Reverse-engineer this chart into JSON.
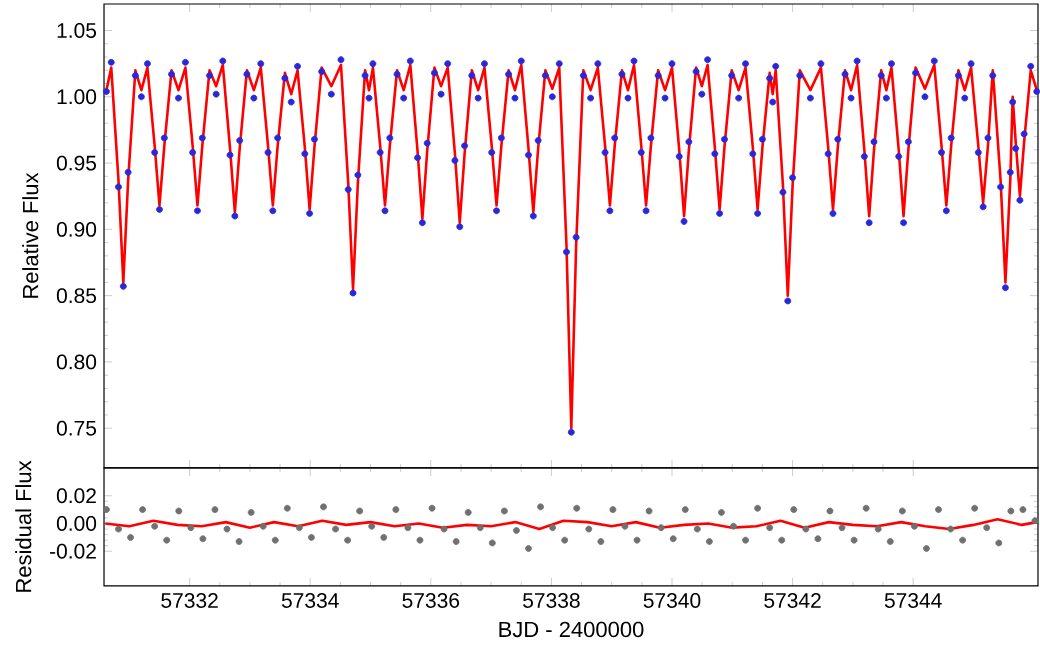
{
  "chart_data": [
    {
      "type": "line",
      "ylabel": "Relative Flux",
      "xlim": [
        57330.58,
        57346.07
      ],
      "ylim": [
        0.72,
        1.07
      ],
      "xticks": [
        57332,
        57334,
        57336,
        57338,
        57340,
        57342,
        57344
      ],
      "yticks": [
        {
          "value": 0.75,
          "label": "0.75"
        },
        {
          "value": 0.8,
          "label": "0.80"
        },
        {
          "value": 0.85,
          "label": "0.85"
        },
        {
          "value": 0.9,
          "label": "0.90"
        },
        {
          "value": 0.95,
          "label": "0.95"
        },
        {
          "value": 1.0,
          "label": "1.00"
        },
        {
          "value": 1.05,
          "label": "1.05"
        }
      ],
      "tick_labels": "y",
      "x": [
        57330.62,
        57330.7,
        57330.82,
        57330.9,
        57330.98,
        57331.1,
        57331.2,
        57331.3,
        57331.42,
        57331.5,
        57331.58,
        57331.7,
        57331.815,
        57331.93,
        57332.05,
        57332.13,
        57332.21,
        57332.33,
        57332.44,
        57332.55,
        57332.67,
        57332.75,
        57332.83,
        57332.95,
        57333.065,
        57333.18,
        57333.3,
        57333.38,
        57333.46,
        57333.58,
        57333.685,
        57333.79,
        57333.91,
        57333.99,
        57334.07,
        57334.19,
        57334.35,
        57334.51,
        57334.63,
        57334.71,
        57334.79,
        57334.91,
        57334.975,
        57335.04,
        57335.16,
        57335.24,
        57335.32,
        57335.44,
        57335.55,
        57335.66,
        57335.78,
        57335.86,
        57335.94,
        57336.06,
        57336.17,
        57336.28,
        57336.4,
        57336.48,
        57336.56,
        57336.68,
        57336.785,
        57336.89,
        57337.01,
        57337.09,
        57337.17,
        57337.29,
        57337.395,
        57337.5,
        57337.62,
        57337.7,
        57337.78,
        57337.9,
        57338.015,
        57338.13,
        57338.25,
        57338.33,
        57338.41,
        57338.53,
        57338.65,
        57338.77,
        57338.89,
        57338.97,
        57339.05,
        57339.17,
        57339.27,
        57339.37,
        57339.49,
        57339.57,
        57339.65,
        57339.77,
        57339.885,
        57340.0,
        57340.12,
        57340.2,
        57340.28,
        57340.4,
        57340.495,
        57340.59,
        57340.71,
        57340.79,
        57340.87,
        57340.99,
        57341.105,
        57341.22,
        57341.34,
        57341.42,
        57341.5,
        57341.62,
        57341.67,
        57341.72,
        57341.84,
        57341.92,
        57342.0,
        57342.12,
        57342.295,
        57342.47,
        57342.59,
        57342.67,
        57342.75,
        57342.87,
        57342.97,
        57343.07,
        57343.19,
        57343.27,
        57343.35,
        57343.47,
        57343.555,
        57343.64,
        57343.76,
        57343.84,
        57343.92,
        57344.04,
        57344.195,
        57344.35,
        57344.47,
        57344.55,
        57344.63,
        57344.75,
        57344.855,
        57344.96,
        57345.08,
        57345.16,
        57345.24,
        57345.32,
        57345.45,
        57345.53,
        57345.61,
        57345.65,
        57345.7,
        57345.77,
        57345.84,
        57345.95,
        57346.05
      ],
      "series": [
        {
          "color": "#ff0000",
          "values": [
            1.005,
            1.022,
            0.937,
            0.86,
            0.937,
            1.02,
            1.005,
            1.022,
            0.963,
            0.918,
            0.963,
            1.02,
            1.005,
            1.022,
            0.963,
            0.918,
            0.963,
            1.02,
            1.008,
            1.024,
            0.961,
            0.913,
            0.961,
            1.02,
            1.005,
            1.022,
            0.963,
            0.918,
            0.963,
            1.018,
            1.002,
            1.02,
            0.962,
            0.915,
            0.962,
            1.022,
            1.008,
            1.024,
            0.935,
            0.855,
            0.935,
            1.02,
            1.005,
            1.022,
            0.963,
            0.918,
            0.963,
            1.02,
            1.005,
            1.024,
            0.959,
            0.908,
            0.959,
            1.022,
            1.008,
            1.022,
            0.957,
            0.905,
            0.957,
            1.02,
            1.005,
            1.022,
            0.963,
            0.918,
            0.963,
            1.02,
            1.005,
            1.024,
            0.961,
            0.913,
            0.961,
            1.02,
            1.006,
            1.022,
            0.888,
            0.75,
            0.888,
            1.02,
            1.005,
            1.022,
            0.963,
            0.918,
            0.963,
            1.02,
            1.005,
            1.024,
            0.963,
            0.918,
            0.963,
            1.02,
            1.005,
            1.022,
            0.96,
            0.91,
            0.96,
            1.022,
            1.008,
            1.024,
            0.962,
            0.915,
            0.962,
            1.02,
            1.005,
            1.022,
            0.962,
            0.915,
            0.962,
            1.018,
            1.002,
            1.02,
            0.933,
            0.85,
            0.933,
            1.02,
            1.005,
            1.022,
            0.962,
            0.915,
            0.962,
            1.02,
            1.005,
            1.024,
            0.96,
            0.91,
            0.96,
            1.02,
            1.005,
            1.022,
            0.96,
            0.91,
            0.96,
            1.022,
            1.006,
            1.024,
            0.963,
            0.918,
            0.963,
            1.02,
            1.005,
            1.022,
            0.963,
            0.92,
            0.963,
            1.02,
            0.937,
            0.86,
            0.937,
            1.0,
            0.966,
            0.925,
            0.966,
            1.02,
            1.005
          ]
        },
        {
          "type": "scatter",
          "color": "#2828d8",
          "marker": "circle",
          "values": [
            1.004,
            1.026,
            0.932,
            0.857,
            0.943,
            1.016,
            1.0,
            1.025,
            0.958,
            0.915,
            0.969,
            1.017,
            0.999,
            1.026,
            0.958,
            0.914,
            0.969,
            1.016,
            1.002,
            1.027,
            0.956,
            0.91,
            0.967,
            1.017,
            0.999,
            1.025,
            0.958,
            0.914,
            0.969,
            1.014,
            0.996,
            1.023,
            0.957,
            0.912,
            0.968,
            1.019,
            1.002,
            1.028,
            0.93,
            0.852,
            0.941,
            1.016,
            0.999,
            1.025,
            0.958,
            0.914,
            0.969,
            1.017,
            0.999,
            1.027,
            0.954,
            0.905,
            0.965,
            1.018,
            1.002,
            1.025,
            0.952,
            0.902,
            0.963,
            1.016,
            0.999,
            1.025,
            0.958,
            0.914,
            0.969,
            1.017,
            0.999,
            1.027,
            0.956,
            0.91,
            0.967,
            1.016,
            1.0,
            1.025,
            0.883,
            0.747,
            0.894,
            1.016,
            0.999,
            1.025,
            0.958,
            0.914,
            0.969,
            1.017,
            0.999,
            1.027,
            0.958,
            0.914,
            0.969,
            1.016,
            0.999,
            1.025,
            0.955,
            0.906,
            0.966,
            1.019,
            1.002,
            1.028,
            0.957,
            0.912,
            0.968,
            1.016,
            0.999,
            1.025,
            0.957,
            0.912,
            0.968,
            1.014,
            0.996,
            1.023,
            0.928,
            0.846,
            0.939,
            1.016,
            0.999,
            1.025,
            0.957,
            0.912,
            0.968,
            1.017,
            0.999,
            1.027,
            0.955,
            0.905,
            0.966,
            1.016,
            0.999,
            1.025,
            0.955,
            0.905,
            0.966,
            1.018,
            1.0,
            1.027,
            0.958,
            0.914,
            0.969,
            1.016,
            0.999,
            1.025,
            0.958,
            0.917,
            0.969,
            1.016,
            0.932,
            0.856,
            0.943,
            0.996,
            0.961,
            0.922,
            0.972,
            1.023,
            1.004
          ]
        }
      ]
    },
    {
      "type": "scatter",
      "ylabel": "Residual Flux",
      "xlabel": "BJD - 2400000",
      "xlim": [
        57330.58,
        57346.07
      ],
      "ylim": [
        -0.045,
        0.04
      ],
      "xticks": [
        57332,
        57334,
        57336,
        57338,
        57340,
        57342,
        57344
      ],
      "yticks": [
        {
          "value": -0.02,
          "label": "-0.02"
        },
        {
          "value": 0,
          "label": "0.00"
        },
        {
          "value": 0.02,
          "label": "0.02"
        }
      ],
      "series": [
        {
          "color": "#707070",
          "marker": "circle",
          "x": [
            57330.62,
            57330.82,
            57331.02,
            57331.22,
            57331.42,
            57331.62,
            57331.82,
            57332.02,
            57332.22,
            57332.42,
            57332.62,
            57332.82,
            57333.02,
            57333.22,
            57333.42,
            57333.62,
            57333.82,
            57334.02,
            57334.22,
            57334.42,
            57334.62,
            57334.82,
            57335.02,
            57335.22,
            57335.42,
            57335.62,
            57335.82,
            57336.02,
            57336.22,
            57336.42,
            57336.62,
            57336.82,
            57337.02,
            57337.22,
            57337.42,
            57337.62,
            57337.82,
            57338.02,
            57338.22,
            57338.42,
            57338.62,
            57338.82,
            57339.02,
            57339.22,
            57339.42,
            57339.62,
            57339.82,
            57340.02,
            57340.22,
            57340.42,
            57340.62,
            57340.82,
            57341.02,
            57341.22,
            57341.42,
            57341.62,
            57341.82,
            57342.02,
            57342.22,
            57342.42,
            57342.62,
            57342.82,
            57343.02,
            57343.22,
            57343.42,
            57343.62,
            57343.82,
            57344.02,
            57344.22,
            57344.42,
            57344.62,
            57344.82,
            57345.02,
            57345.22,
            57345.42,
            57345.62,
            57345.82,
            57346.02
          ],
          "values": [
            0.01,
            -0.004,
            -0.01,
            0.01,
            -0.002,
            -0.012,
            0.009,
            -0.003,
            -0.011,
            0.01,
            -0.004,
            -0.013,
            0.008,
            -0.002,
            -0.012,
            0.011,
            -0.003,
            -0.01,
            0.012,
            -0.004,
            -0.012,
            0.009,
            -0.002,
            -0.01,
            0.01,
            -0.003,
            -0.012,
            0.011,
            -0.004,
            -0.013,
            0.008,
            -0.003,
            -0.014,
            0.009,
            -0.005,
            -0.018,
            0.012,
            -0.003,
            -0.012,
            0.011,
            -0.004,
            -0.013,
            0.01,
            -0.002,
            -0.012,
            0.009,
            -0.003,
            -0.011,
            0.01,
            -0.004,
            -0.013,
            0.008,
            -0.002,
            -0.012,
            0.011,
            -0.003,
            -0.012,
            0.01,
            -0.004,
            -0.011,
            0.009,
            -0.003,
            -0.012,
            0.011,
            -0.004,
            -0.013,
            0.009,
            -0.002,
            -0.018,
            0.01,
            -0.004,
            -0.012,
            0.011,
            -0.003,
            -0.014,
            0.009,
            0.01,
            0.002
          ]
        },
        {
          "type": "line",
          "color": "#ff0000",
          "x": [
            57330.6,
            57331.0,
            57331.4,
            57331.8,
            57332.2,
            57332.6,
            57333.0,
            57333.4,
            57333.8,
            57334.2,
            57334.6,
            57335.0,
            57335.4,
            57335.8,
            57336.2,
            57336.6,
            57337.0,
            57337.4,
            57337.8,
            57338.2,
            57338.6,
            57339.0,
            57339.4,
            57339.8,
            57340.2,
            57340.6,
            57341.0,
            57341.4,
            57341.8,
            57342.2,
            57342.6,
            57343.0,
            57343.4,
            57343.8,
            57344.2,
            57344.6,
            57345.0,
            57345.4,
            57345.8,
            57346.05
          ],
          "values": [
            0.0,
            -0.002,
            0.002,
            -0.001,
            -0.002,
            0.001,
            -0.003,
            0.001,
            -0.002,
            0.002,
            -0.001,
            0.001,
            -0.002,
            0.0,
            -0.003,
            -0.001,
            -0.002,
            0.001,
            -0.004,
            0.002,
            0.001,
            -0.002,
            0.001,
            -0.003,
            -0.001,
            0.0,
            -0.003,
            -0.002,
            0.002,
            -0.003,
            0.001,
            -0.001,
            -0.002,
            0.001,
            -0.002,
            -0.004,
            -0.001,
            0.003,
            -0.001,
            0.001
          ]
        }
      ]
    }
  ]
}
